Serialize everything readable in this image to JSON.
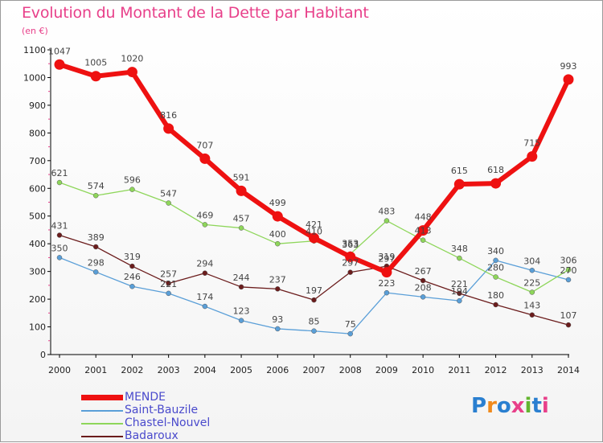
{
  "title": "Evolution du Montant de la Dette par Habitant",
  "subtitle": "(en €)",
  "logo": "Proxiti",
  "chart_data": {
    "type": "line",
    "x": [
      "2000",
      "2001",
      "2002",
      "2003",
      "2004",
      "2005",
      "2006",
      "2007",
      "2008",
      "2009",
      "2010",
      "2011",
      "2012",
      "2013",
      "2014"
    ],
    "ylim": [
      0,
      1100
    ],
    "yticks": [
      0,
      100,
      200,
      300,
      400,
      500,
      600,
      700,
      800,
      900,
      1000,
      1100
    ],
    "grid": false,
    "legend_position": "bottom-left",
    "series": [
      {
        "name": "MENDE",
        "color": "#ee1111",
        "width": 6,
        "values": [
          1047,
          1005,
          1020,
          816,
          707,
          591,
          499,
          421,
          353,
          297,
          448,
          615,
          618,
          715,
          993
        ]
      },
      {
        "name": "Saint-Bauzile",
        "color": "#5a9fd8",
        "width": 1.3,
        "values": [
          350,
          298,
          246,
          221,
          174,
          123,
          93,
          85,
          75,
          223,
          208,
          194,
          340,
          304,
          270
        ]
      },
      {
        "name": "Chastel-Nouvel",
        "color": "#8ed65a",
        "width": 1.3,
        "values": [
          621,
          574,
          596,
          547,
          469,
          457,
          400,
          410,
          363,
          483,
          413,
          348,
          280,
          225,
          306
        ]
      },
      {
        "name": "Badaroux",
        "color": "#6b1c1c",
        "width": 1.3,
        "values": [
          431,
          389,
          319,
          257,
          294,
          244,
          237,
          197,
          297,
          319,
          267,
          221,
          180,
          143,
          107
        ]
      }
    ]
  },
  "colors": {
    "title": "#e8408a",
    "axis": "#000000",
    "tick_accent": "#e8408a",
    "label": "#444444"
  }
}
